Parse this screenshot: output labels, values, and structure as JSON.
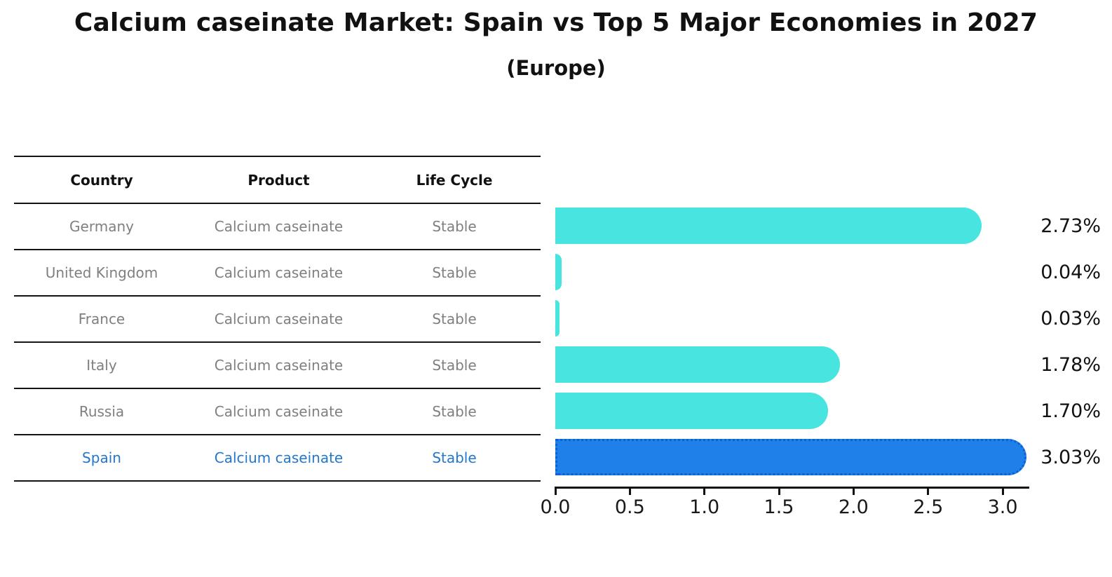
{
  "title": "Calcium caseinate Market: Spain vs Top 5 Major Economies in 2027",
  "subtitle": "(Europe)",
  "table": {
    "headers": [
      "Country",
      "Product",
      "Life Cycle"
    ],
    "rows": [
      {
        "country": "Germany",
        "product": "Calcium caseinate",
        "life_cycle": "Stable",
        "highlight": false
      },
      {
        "country": "United Kingdom",
        "product": "Calcium caseinate",
        "life_cycle": "Stable",
        "highlight": false
      },
      {
        "country": "France",
        "product": "Calcium caseinate",
        "life_cycle": "Stable",
        "highlight": false
      },
      {
        "country": "Italy",
        "product": "Calcium caseinate",
        "life_cycle": "Stable",
        "highlight": false
      },
      {
        "country": "Russia",
        "product": "Calcium caseinate",
        "life_cycle": "Stable",
        "highlight": true
      }
    ]
  },
  "chart_data": {
    "type": "bar",
    "orientation": "horizontal",
    "title": "Calcium caseinate Market: Spain vs Top 5 Major Economies in 2027",
    "subtitle": "(Europe)",
    "categories": [
      "Germany",
      "United Kingdom",
      "France",
      "Italy",
      "Russia",
      "Spain"
    ],
    "values": [
      2.73,
      0.04,
      0.03,
      1.78,
      1.7,
      3.03
    ],
    "value_labels": [
      "2.73%",
      "0.04%",
      "0.03%",
      "1.78%",
      "1.70%",
      "3.03%"
    ],
    "x_tick_values": [
      0.0,
      0.5,
      1.0,
      1.5,
      2.0,
      2.5,
      3.0
    ],
    "x_tick_labels": [
      "0.0",
      "0.5",
      "1.0",
      "1.5",
      "2.0",
      "2.5",
      "3.0"
    ],
    "xlim": [
      0.0,
      3.2
    ],
    "highlight_index": 5,
    "grid": false,
    "legend": "none",
    "bar_color": "#47E4E0",
    "highlight_bar_color": "#1E80E8",
    "highlight_border_color": "#0d5fd6",
    "highlight_text_color": "#2377cd"
  }
}
